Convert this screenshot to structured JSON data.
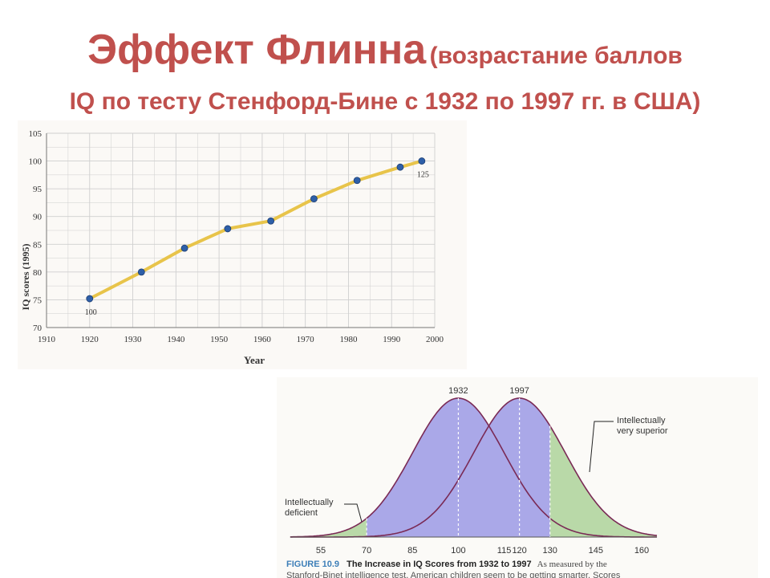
{
  "title": {
    "main": "Эффект Флинна",
    "subtitle_part1": "(возрастание баллов",
    "subtitle_part2": "IQ по тесту Стенфорд-Бине с 1932 по 1997 гг. в США)"
  },
  "chart_data": [
    {
      "type": "line",
      "xlabel": "Year",
      "ylabel": "IQ scores (1995)",
      "xlim": [
        1910,
        2000
      ],
      "ylim": [
        70,
        105
      ],
      "x_ticks": [
        1910,
        1920,
        1930,
        1940,
        1950,
        1960,
        1970,
        1980,
        1990,
        2000
      ],
      "y_ticks": [
        70,
        75,
        80,
        85,
        90,
        95,
        100,
        105
      ],
      "grid": true,
      "line_color": "#e8c44a",
      "marker_color": "#2e5fa8",
      "series": [
        {
          "x": [
            1920,
            1932,
            1942,
            1952,
            1962,
            1972,
            1982,
            1992,
            1997
          ],
          "y": [
            75.2,
            80,
            84.3,
            87.8,
            89.2,
            93.2,
            96.5,
            98.9,
            100
          ]
        }
      ],
      "annotations": [
        {
          "text": "100",
          "x": 1920,
          "y": 75.2,
          "position": "below"
        },
        {
          "text": "125",
          "x": 1997,
          "y": 100,
          "position": "below"
        }
      ]
    },
    {
      "type": "area",
      "x_ticks": [
        55,
        70,
        85,
        100,
        115,
        120,
        130,
        145,
        160
      ],
      "xlim": [
        55,
        160
      ],
      "series": [
        {
          "name": "1932",
          "mean": 100,
          "sd": 15,
          "fill": "#aaa8e8"
        },
        {
          "name": "1997",
          "mean": 120,
          "sd": 15,
          "fill": "#aaa8e8"
        }
      ],
      "shaded_regions": [
        {
          "label": "Intellectually deficient",
          "below": 70,
          "fill": "#b9d9a8"
        },
        {
          "label": "Intellectually very superior",
          "above": 130,
          "fill": "#b9d9a8"
        }
      ],
      "labels": {
        "deficient_line1": "Intellectually",
        "deficient_line2": "deficient",
        "superior_line1": "Intellectually",
        "superior_line2": "very superior"
      },
      "caption": {
        "figure": "FIGURE 10.9",
        "title": "The Increase in IQ Scores from 1932 to 1997",
        "text": "As measured by the",
        "line2": "Stanford-Binet intelligence test, American children seem to be getting smarter. Scores"
      }
    }
  ]
}
